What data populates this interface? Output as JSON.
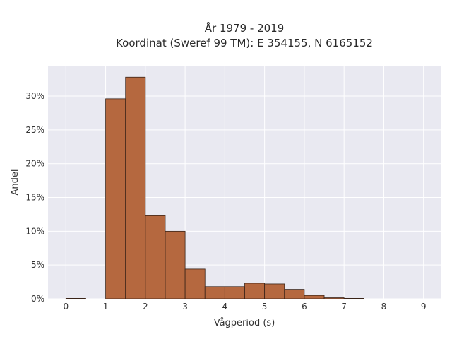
{
  "chart_data": {
    "type": "bar",
    "title": "År 1979 - 2019",
    "subtitle": "Koordinat (Sweref 99 TM): E 354155, N 6165152",
    "xlabel": "Vågperiod (s)",
    "ylabel": "Andel",
    "bin_width": 0.5,
    "bins": [
      {
        "x0": 0.0,
        "value": 0.05
      },
      {
        "x0": 1.0,
        "value": 29.6
      },
      {
        "x0": 1.5,
        "value": 32.8
      },
      {
        "x0": 2.0,
        "value": 12.3
      },
      {
        "x0": 2.5,
        "value": 10.0
      },
      {
        "x0": 3.0,
        "value": 4.4
      },
      {
        "x0": 3.5,
        "value": 1.8
      },
      {
        "x0": 4.0,
        "value": 1.8
      },
      {
        "x0": 4.5,
        "value": 2.3
      },
      {
        "x0": 5.0,
        "value": 2.2
      },
      {
        "x0": 5.5,
        "value": 1.4
      },
      {
        "x0": 6.0,
        "value": 0.5
      },
      {
        "x0": 6.5,
        "value": 0.15
      },
      {
        "x0": 7.0,
        "value": 0.05
      }
    ],
    "xlim": [
      -0.45,
      9.45
    ],
    "ylim": [
      0,
      34.5
    ],
    "xticks": [
      0,
      1,
      2,
      3,
      4,
      5,
      6,
      7,
      8,
      9
    ],
    "yticks": [
      0,
      5,
      10,
      15,
      20,
      25,
      30
    ],
    "ytick_labels": [
      "0%",
      "5%",
      "10%",
      "15%",
      "20%",
      "25%",
      "30%"
    ],
    "grid": true,
    "colors": {
      "bar_fill": "#b5683f",
      "bar_stroke": "#3a2418",
      "plot_bg": "#e9e9f1",
      "grid": "#ffffff"
    }
  }
}
